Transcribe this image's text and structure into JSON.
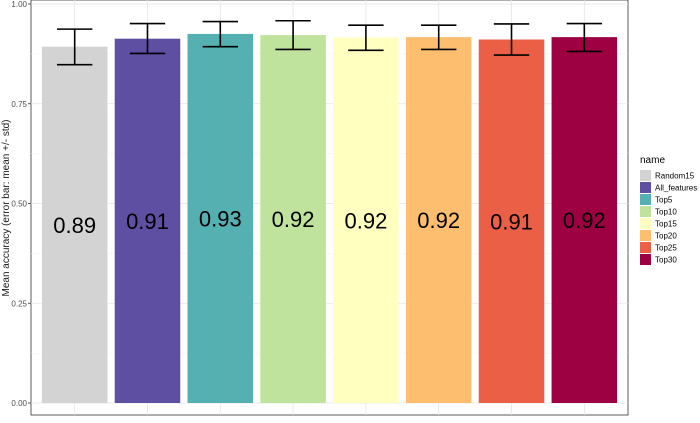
{
  "chart_data": {
    "type": "bar",
    "title": "",
    "xlabel": "",
    "ylabel": "Mean accuracy (error bar: mean +/- std)",
    "ylim": [
      0,
      1.0
    ],
    "yticks": [
      "0.00",
      "0.25",
      "0.50",
      "0.75",
      "1.00"
    ],
    "ytick_values": [
      0,
      0.25,
      0.5,
      0.75,
      1.0
    ],
    "grid": true,
    "legend_title": "name",
    "legend_position": "right",
    "series": [
      {
        "name": "Random15",
        "value": 0.893,
        "label": "0.89",
        "err_low": 0.848,
        "err_high": 0.937,
        "color": "#d3d3d3"
      },
      {
        "name": "All_features",
        "value": 0.913,
        "label": "0.91",
        "err_low": 0.876,
        "err_high": 0.951,
        "color": "#5e4fa2"
      },
      {
        "name": "Top5",
        "value": 0.925,
        "label": "0.93",
        "err_low": 0.893,
        "err_high": 0.956,
        "color": "#55b0b1"
      },
      {
        "name": "Top10",
        "value": 0.922,
        "label": "0.92",
        "err_low": 0.886,
        "err_high": 0.958,
        "color": "#bfe39c"
      },
      {
        "name": "Top15",
        "value": 0.916,
        "label": "0.92",
        "err_low": 0.884,
        "err_high": 0.947,
        "color": "#ffffbf"
      },
      {
        "name": "Top20",
        "value": 0.917,
        "label": "0.92",
        "err_low": 0.886,
        "err_high": 0.947,
        "color": "#fdbe6f"
      },
      {
        "name": "Top25",
        "value": 0.911,
        "label": "0.91",
        "err_low": 0.872,
        "err_high": 0.95,
        "color": "#ec5f47"
      },
      {
        "name": "Top30",
        "value": 0.917,
        "label": "0.92",
        "err_low": 0.881,
        "err_high": 0.951,
        "color": "#9e0142"
      }
    ]
  }
}
